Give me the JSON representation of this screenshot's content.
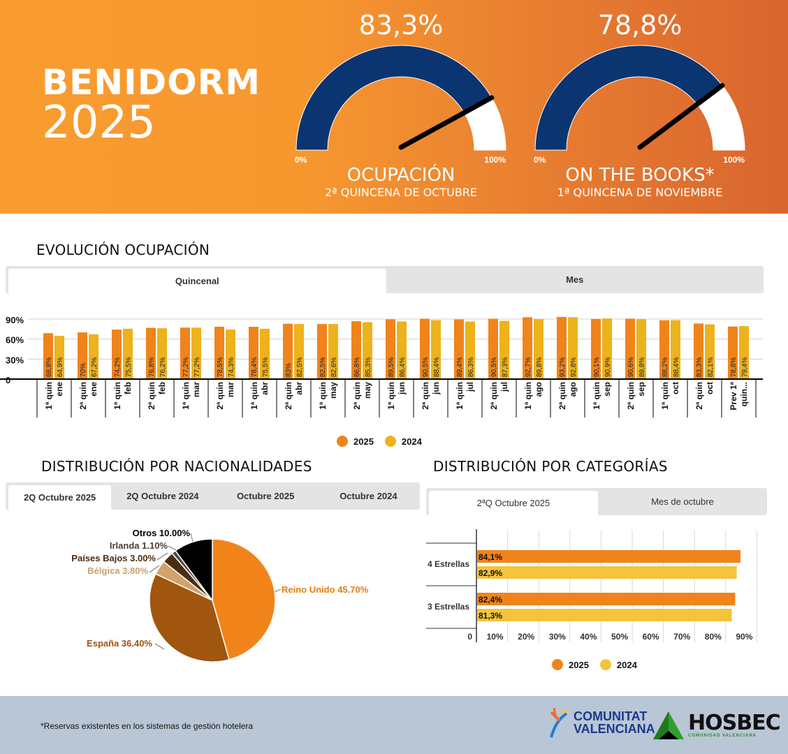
{
  "header": {
    "city": "BENIDORM",
    "year": "2025",
    "gauges": [
      {
        "value_label": "83,3%",
        "value": 83.3,
        "min_label": "0%",
        "max_label": "100%",
        "title": "OCUPACIÓN",
        "subtitle": "2ª QUINCENA DE OCTUBRE"
      },
      {
        "value_label": "78,8%",
        "value": 78.8,
        "min_label": "0%",
        "max_label": "100%",
        "title": "ON THE BOOKS*",
        "subtitle": "1ª QUINCENA DE NOVIEMBRE"
      }
    ],
    "colors": {
      "gauge_fill": "#0b3570",
      "gauge_rest": "#ffffff",
      "needle": "#000000"
    }
  },
  "evolucion": {
    "title": "EVOLUCIÓN OCUPACIÓN",
    "tabs": [
      {
        "label": "Quincenal",
        "active": true
      },
      {
        "label": "Mes",
        "active": false
      }
    ],
    "legend": [
      {
        "label": "2025",
        "color": "#f0841a"
      },
      {
        "label": "2024",
        "color": "#edb21c"
      }
    ]
  },
  "nacionalidades": {
    "title": "DISTRIBUCIÓN POR NACIONALIDADES",
    "tabs": [
      {
        "label": "2Q Octubre 2025",
        "active": true
      },
      {
        "label": "2Q Octubre 2024",
        "active": false
      },
      {
        "label": "Octubre 2025",
        "active": false
      },
      {
        "label": "Octubre 2024",
        "active": false
      }
    ]
  },
  "categorias": {
    "title": "DISTRIBUCIÓN POR CATEGORÍAS",
    "tabs": [
      {
        "label": "2ªQ Octubre 2025",
        "active": true
      },
      {
        "label": "Mes de octubre",
        "active": false
      }
    ],
    "legend": [
      {
        "label": "2025",
        "color": "#f0841a"
      },
      {
        "label": "2024",
        "color": "#f3c43c"
      }
    ]
  },
  "footer": {
    "note": "*Reservas existentes en los sistemas de gestión hotelera",
    "logo1_line1": "COMUNITAT",
    "logo1_line2": "VALENCIANA",
    "logo2": "HOSBEC",
    "logo2_sub": "COMUNIDAD VALENCIANA"
  },
  "chart_data": [
    {
      "type": "bar",
      "title": "EVOLUCIÓN OCUPACIÓN",
      "categories": [
        "1ª quin ene",
        "2ª quin ene",
        "1ª quin feb",
        "2ª quin feb",
        "1ª quin mar",
        "2ª quin mar",
        "1ª quin abr",
        "2ª quin abr",
        "1ª quin may",
        "2ª quin may",
        "1ª quin jun",
        "2ª quin jun",
        "1ª quin jul",
        "2ª quin jul",
        "1ª quin ago",
        "2ª quin ago",
        "1ª quin sep",
        "2ª quin sep",
        "1ª quin oct",
        "2ª quin oct",
        "Prev 1ª quin..."
      ],
      "series": [
        {
          "name": "2025",
          "color": "#f0841a",
          "values": [
            68.8,
            70,
            74.2,
            76.8,
            77.2,
            78.5,
            78.4,
            83,
            82.5,
            86.8,
            89.5,
            90.5,
            89.4,
            90.5,
            92.7,
            93.2,
            90.1,
            90.6,
            88.2,
            83.3,
            78.8
          ],
          "labels": [
            "68,8%",
            "70%",
            "74,2%",
            "76,8%",
            "77,2%",
            "78,5%",
            "78,4%",
            "83%",
            "82,5%",
            "86,8%",
            "89,5%",
            "90,5%",
            "89,4%",
            "90,5%",
            "92,7%",
            "93,2%",
            "90,1%",
            "90,6%",
            "88,2%",
            "83,3%",
            "78,8%"
          ]
        },
        {
          "name": "2024",
          "color": "#edb21c",
          "values": [
            64.9,
            67.2,
            75.5,
            76.2,
            77.2,
            74.3,
            75.5,
            82.5,
            82.6,
            85.3,
            86.4,
            88.4,
            86.3,
            87.3,
            89.8,
            92.8,
            90.9,
            89.8,
            88.4,
            82.1,
            79.4
          ],
          "labels": [
            "64,9%",
            "67,2%",
            "75,5%",
            "76,2%",
            "77,2%",
            "74,3%",
            "75,5%",
            "82,5%",
            "82,6%",
            "85,3%",
            "86,4%",
            "88,4%",
            "86,3%",
            "87,3%",
            "89,8%",
            "92,8%",
            "90,9%",
            "89,8%",
            "88,4%",
            "82,1%",
            "79,4%"
          ]
        }
      ],
      "yticks": [
        "0",
        "30%",
        "60%",
        "90%"
      ],
      "ylim": [
        0,
        90
      ],
      "grid": true,
      "legend_position": "bottom"
    },
    {
      "type": "pie",
      "title": "DISTRIBUCIÓN POR NACIONALIDADES",
      "slices": [
        {
          "label": "Reino Unido",
          "value": 45.7,
          "text": "Reino Unido 45.70%",
          "color": "#f0841a"
        },
        {
          "label": "España",
          "value": 36.4,
          "text": "España 36.40%",
          "color": "#a0560f"
        },
        {
          "label": "Bélgica",
          "value": 3.8,
          "text": "Bélgica 3.80%",
          "color": "#d2a26a"
        },
        {
          "label": "Países Bajos",
          "value": 3.0,
          "text": "Países Bajos 3.00%",
          "color": "#4a2e12"
        },
        {
          "label": "Irlanda",
          "value": 1.1,
          "text": "Irlanda 1.10%",
          "color": "#5a4a3a"
        },
        {
          "label": "Otros",
          "value": 10.0,
          "text": "Otros 10.00%",
          "color": "#000000"
        }
      ]
    },
    {
      "type": "bar",
      "orientation": "horizontal",
      "title": "DISTRIBUCIÓN POR CATEGORÍAS",
      "categories": [
        "4 Estrellas",
        "3 Estrellas"
      ],
      "series": [
        {
          "name": "2025",
          "color": "#f0841a",
          "values": [
            84.1,
            82.4
          ],
          "labels": [
            "84,1%",
            "82,4%"
          ]
        },
        {
          "name": "2024",
          "color": "#f3c43c",
          "values": [
            82.9,
            81.3
          ],
          "labels": [
            "82,9%",
            "81,3%"
          ]
        }
      ],
      "xticks": [
        "0",
        "10%",
        "20%",
        "30%",
        "40%",
        "50%",
        "60%",
        "70%",
        "80%",
        "90%"
      ],
      "xlim": [
        0,
        90
      ],
      "grid": true,
      "legend_position": "bottom"
    }
  ]
}
